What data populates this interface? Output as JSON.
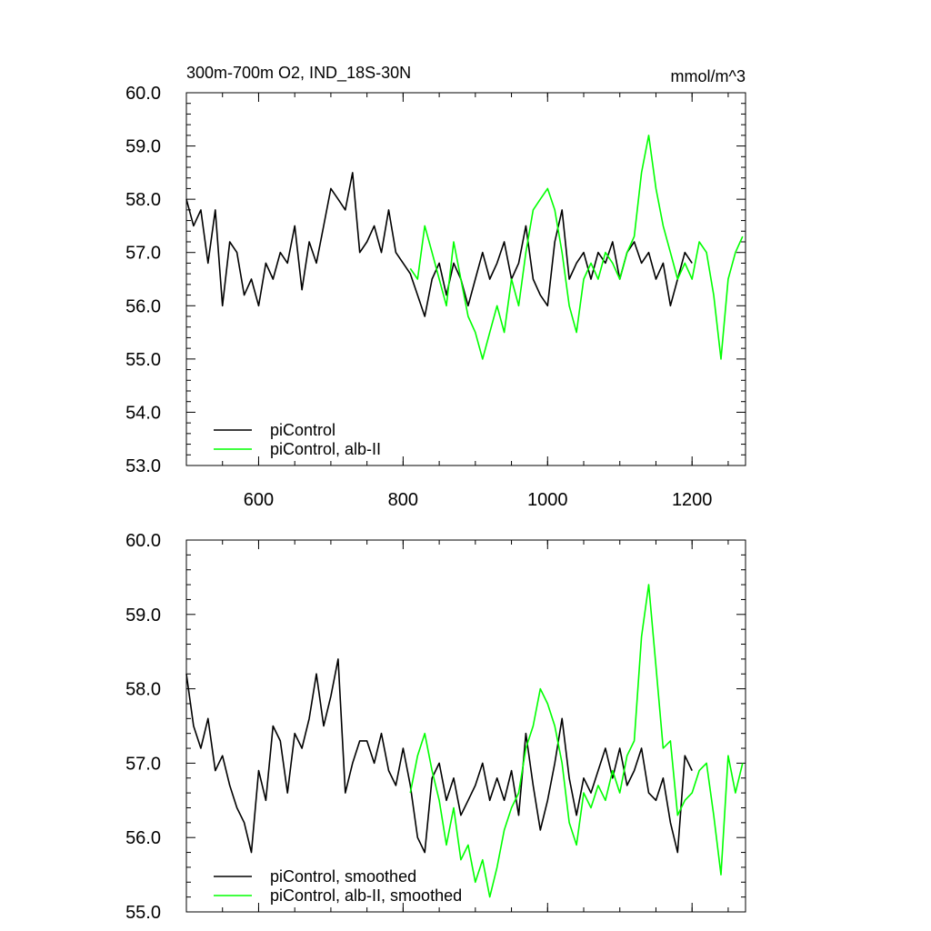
{
  "chart_data": [
    {
      "type": "line",
      "title": "300m-700m O2, IND_18S-30N",
      "unit_label": "mmol/m^3",
      "xlim": [
        500,
        1274
      ],
      "xticks": [
        600,
        800,
        1000,
        1200
      ],
      "ylim": [
        53,
        60
      ],
      "yticks": [
        {
          "value": 53,
          "label": "53.0"
        },
        {
          "value": 54,
          "label": "54.0"
        },
        {
          "value": 55,
          "label": "55.0"
        },
        {
          "value": 56,
          "label": "56.0"
        },
        {
          "value": 57,
          "label": "57.0"
        },
        {
          "value": 58,
          "label": "58.0"
        },
        {
          "value": 59,
          "label": "59.0"
        },
        {
          "value": 60,
          "label": "60.0"
        }
      ],
      "show_xtick_labels": true,
      "legend": "lower left",
      "series": [
        {
          "name": "piControl",
          "color": "#000000",
          "x": [
            500,
            510,
            520,
            530,
            540,
            550,
            560,
            570,
            580,
            590,
            600,
            610,
            620,
            630,
            640,
            650,
            660,
            670,
            680,
            690,
            700,
            710,
            720,
            730,
            740,
            750,
            760,
            770,
            780,
            790,
            800,
            810,
            820,
            830,
            840,
            850,
            860,
            870,
            880,
            890,
            900,
            910,
            920,
            930,
            940,
            950,
            960,
            970,
            980,
            990,
            1000,
            1010,
            1020,
            1030,
            1040,
            1050,
            1060,
            1070,
            1080,
            1090,
            1100,
            1110,
            1120,
            1130,
            1140,
            1150,
            1160,
            1170,
            1180,
            1190,
            1200
          ],
          "values": [
            58.0,
            57.5,
            57.8,
            56.8,
            57.8,
            56.0,
            57.2,
            57.0,
            56.2,
            56.5,
            56.0,
            56.8,
            56.5,
            57.0,
            56.8,
            57.5,
            56.3,
            57.2,
            56.8,
            57.5,
            58.2,
            58.0,
            57.8,
            58.5,
            57.0,
            57.2,
            57.5,
            57.0,
            57.8,
            57.0,
            56.8,
            56.6,
            56.2,
            55.8,
            56.5,
            56.8,
            56.2,
            56.8,
            56.5,
            56.0,
            56.5,
            57.0,
            56.5,
            56.8,
            57.2,
            56.5,
            56.8,
            57.5,
            56.5,
            56.2,
            56.0,
            57.2,
            57.8,
            56.5,
            56.8,
            57.0,
            56.5,
            57.0,
            56.8,
            57.2,
            56.5,
            57.0,
            57.2,
            56.8,
            57.0,
            56.5,
            56.8,
            56.0,
            56.5,
            57.0,
            56.8
          ]
        },
        {
          "name": "piControl, alb-II",
          "color": "#00ff00",
          "x": [
            810,
            820,
            830,
            840,
            850,
            860,
            870,
            880,
            890,
            900,
            910,
            920,
            930,
            940,
            950,
            960,
            970,
            980,
            990,
            1000,
            1010,
            1020,
            1030,
            1040,
            1050,
            1060,
            1070,
            1080,
            1090,
            1100,
            1110,
            1120,
            1130,
            1140,
            1150,
            1160,
            1170,
            1180,
            1190,
            1200,
            1210,
            1220,
            1230,
            1240,
            1250,
            1260,
            1270
          ],
          "values": [
            56.7,
            56.5,
            57.5,
            57.0,
            56.5,
            56.0,
            57.2,
            56.5,
            55.8,
            55.5,
            55.0,
            55.5,
            56.0,
            55.5,
            56.5,
            56.0,
            57.0,
            57.8,
            58.0,
            58.2,
            57.8,
            57.0,
            56.0,
            55.5,
            56.5,
            56.8,
            56.5,
            57.0,
            56.8,
            56.5,
            57.0,
            57.3,
            58.5,
            59.2,
            58.2,
            57.5,
            57.0,
            56.5,
            56.8,
            56.5,
            57.2,
            57.0,
            56.2,
            55.0,
            56.5,
            57.0,
            57.3
          ]
        }
      ]
    },
    {
      "type": "line",
      "xlim": [
        500,
        1274
      ],
      "xticks": [
        600,
        800,
        1000,
        1200
      ],
      "ylim": [
        55,
        60
      ],
      "yticks": [
        {
          "value": 55,
          "label": "55.0"
        },
        {
          "value": 56,
          "label": "56.0"
        },
        {
          "value": 57,
          "label": "57.0"
        },
        {
          "value": 58,
          "label": "58.0"
        },
        {
          "value": 59,
          "label": "59.0"
        },
        {
          "value": 60,
          "label": "60.0"
        }
      ],
      "show_xtick_labels": false,
      "legend": "lower left",
      "series": [
        {
          "name": "piControl, smoothed",
          "color": "#000000",
          "x": [
            500,
            510,
            520,
            530,
            540,
            550,
            560,
            570,
            580,
            590,
            600,
            610,
            620,
            630,
            640,
            650,
            660,
            670,
            680,
            690,
            700,
            710,
            720,
            730,
            740,
            750,
            760,
            770,
            780,
            790,
            800,
            810,
            820,
            830,
            840,
            850,
            860,
            870,
            880,
            890,
            900,
            910,
            920,
            930,
            940,
            950,
            960,
            970,
            980,
            990,
            1000,
            1010,
            1020,
            1030,
            1040,
            1050,
            1060,
            1070,
            1080,
            1090,
            1100,
            1110,
            1120,
            1130,
            1140,
            1150,
            1160,
            1170,
            1180,
            1190,
            1200
          ],
          "values": [
            58.2,
            57.5,
            57.2,
            57.6,
            56.9,
            57.1,
            56.7,
            56.4,
            56.2,
            55.8,
            56.9,
            56.5,
            57.5,
            57.3,
            56.6,
            57.4,
            57.2,
            57.6,
            58.2,
            57.5,
            57.9,
            58.4,
            56.6,
            57.0,
            57.3,
            57.3,
            57.0,
            57.4,
            56.9,
            56.7,
            57.2,
            56.7,
            56.0,
            55.8,
            56.8,
            57.0,
            56.5,
            56.8,
            56.3,
            56.5,
            56.7,
            57.0,
            56.5,
            56.8,
            56.5,
            56.9,
            56.3,
            57.4,
            56.7,
            56.1,
            56.5,
            57.0,
            57.6,
            56.8,
            56.3,
            56.8,
            56.6,
            56.9,
            57.2,
            56.8,
            57.2,
            56.7,
            56.9,
            57.2,
            56.6,
            56.5,
            56.8,
            56.2,
            55.8,
            57.1,
            56.9
          ]
        },
        {
          "name": "piControl, alb-II, smoothed",
          "color": "#00ff00",
          "x": [
            810,
            820,
            830,
            840,
            850,
            860,
            870,
            880,
            890,
            900,
            910,
            920,
            930,
            940,
            950,
            960,
            970,
            980,
            990,
            1000,
            1010,
            1020,
            1030,
            1040,
            1050,
            1060,
            1070,
            1080,
            1090,
            1100,
            1110,
            1120,
            1130,
            1140,
            1150,
            1160,
            1170,
            1180,
            1190,
            1200,
            1210,
            1220,
            1230,
            1240,
            1250,
            1260,
            1270
          ],
          "values": [
            56.6,
            57.1,
            57.4,
            56.9,
            56.5,
            55.9,
            56.4,
            55.7,
            55.9,
            55.4,
            55.7,
            55.2,
            55.6,
            56.1,
            56.4,
            56.6,
            57.2,
            57.5,
            58.0,
            57.8,
            57.5,
            57.0,
            56.2,
            55.9,
            56.6,
            56.4,
            56.7,
            56.5,
            56.9,
            56.6,
            57.1,
            57.3,
            58.7,
            59.4,
            58.3,
            57.2,
            57.3,
            56.3,
            56.5,
            56.6,
            56.9,
            57.0,
            56.3,
            55.5,
            57.1,
            56.6,
            57.0
          ]
        }
      ]
    }
  ]
}
